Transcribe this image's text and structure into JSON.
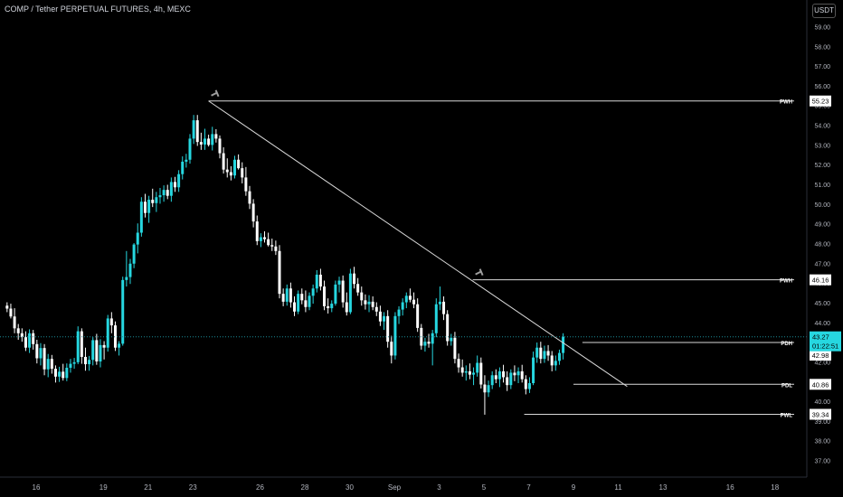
{
  "header": {
    "title": "COMP / Tether PERPETUAL FUTURES, 4h, MEXC",
    "currency_label": "USDT"
  },
  "chart_data": {
    "type": "candlestick",
    "colors": {
      "up": "#26d7e0",
      "down": "#ffffff",
      "level_line": "#d9d9d9",
      "current_price_line": "#1b8b98",
      "badge_bg": "#ffffff",
      "badge_text": "#000000",
      "current_badge_bg": "#26d7e0",
      "background": "#000000"
    },
    "y_axis": {
      "range": [
        36.2,
        59.8
      ],
      "ticks": [
        "59.00",
        "58.00",
        "57.00",
        "56.00",
        "55.00",
        "54.00",
        "53.00",
        "52.00",
        "51.00",
        "50.00",
        "49.00",
        "48.00",
        "47.00",
        "46.00",
        "45.00",
        "44.00",
        "43.00",
        "42.00",
        "41.00",
        "40.00",
        "39.00",
        "38.00",
        "37.00"
      ]
    },
    "x_axis": {
      "ticks": [
        {
          "label": "16",
          "day": 16
        },
        {
          "label": "19",
          "day": 19
        },
        {
          "label": "21",
          "day": 21
        },
        {
          "label": "23",
          "day": 23
        },
        {
          "label": "26",
          "day": 26
        },
        {
          "label": "28",
          "day": 28
        },
        {
          "label": "30",
          "day": 30
        },
        {
          "label": "Sep",
          "day": 32
        },
        {
          "label": "3",
          "day": 34
        },
        {
          "label": "5",
          "day": 36
        },
        {
          "label": "7",
          "day": 38
        },
        {
          "label": "9",
          "day": 40
        },
        {
          "label": "11",
          "day": 42
        },
        {
          "label": "13",
          "day": 44
        },
        {
          "label": "16",
          "day": 47
        },
        {
          "label": "18",
          "day": 49
        }
      ]
    },
    "levels": [
      {
        "label": "PWH",
        "value": 55.23,
        "value_text": "55.23",
        "start_day": 23.7
      },
      {
        "label": "PWH",
        "value": 46.16,
        "value_text": "46.16",
        "start_day": 35.5
      },
      {
        "label": "PDH",
        "value": 42.98,
        "value_text": "42.98",
        "start_day": 40.4
      },
      {
        "label": "PDL",
        "value": 40.86,
        "value_text": "40.86",
        "start_day": 40.0
      },
      {
        "label": "PWL",
        "value": 39.34,
        "value_text": "39.34",
        "start_day": 37.8
      }
    ],
    "trendline": {
      "start": [
        23.7,
        55.23
      ],
      "end": [
        42.4,
        40.75
      ]
    },
    "current_price": {
      "value": 43.27,
      "value_text": "43.27",
      "countdown": "01:22:51"
    },
    "ohlc_start_day": 14.7,
    "ohlc_step_day": 0.1667,
    "ohlc": [
      [
        44.85,
        45.02,
        44.52,
        44.7
      ],
      [
        44.7,
        44.95,
        44.2,
        44.3
      ],
      [
        44.3,
        44.72,
        43.45,
        43.7
      ],
      [
        43.7,
        43.92,
        43.12,
        43.45
      ],
      [
        43.45,
        43.7,
        43.02,
        43.25
      ],
      [
        43.25,
        43.55,
        42.55,
        42.72
      ],
      [
        42.72,
        43.65,
        42.45,
        43.45
      ],
      [
        43.45,
        43.62,
        42.62,
        42.9
      ],
      [
        42.9,
        43.12,
        41.92,
        42.18
      ],
      [
        42.18,
        42.95,
        41.82,
        42.7
      ],
      [
        42.7,
        42.9,
        41.32,
        41.62
      ],
      [
        41.62,
        42.4,
        41.22,
        42.15
      ],
      [
        42.15,
        42.35,
        41.4,
        41.65
      ],
      [
        41.65,
        41.82,
        40.95,
        41.25
      ],
      [
        41.25,
        41.75,
        40.98,
        41.5
      ],
      [
        41.5,
        41.9,
        41.05,
        41.18
      ],
      [
        41.18,
        41.92,
        41.02,
        41.7
      ],
      [
        41.7,
        42.15,
        41.45,
        41.9
      ],
      [
        41.9,
        42.2,
        41.65,
        41.98
      ],
      [
        41.98,
        43.8,
        41.88,
        43.55
      ],
      [
        43.55,
        43.7,
        41.9,
        42.25
      ],
      [
        42.25,
        42.72,
        41.55,
        41.88
      ],
      [
        41.88,
        42.3,
        41.55,
        42.1
      ],
      [
        42.1,
        43.25,
        41.82,
        43.1
      ],
      [
        43.1,
        43.42,
        41.85,
        42.02
      ],
      [
        42.02,
        43.15,
        41.72,
        42.85
      ],
      [
        42.85,
        43.05,
        42.12,
        42.72
      ],
      [
        42.72,
        44.38,
        42.52,
        44.2
      ],
      [
        44.2,
        44.52,
        43.45,
        43.85
      ],
      [
        43.85,
        44.05,
        42.55,
        42.72
      ],
      [
        42.72,
        43.05,
        42.32,
        42.92
      ],
      [
        42.92,
        46.32,
        42.82,
        46.15
      ],
      [
        46.15,
        47.62,
        45.82,
        46.3
      ],
      [
        46.3,
        47.22,
        45.95,
        46.98
      ],
      [
        46.98,
        48.02,
        46.75,
        47.95
      ],
      [
        47.95,
        49.02,
        47.5,
        48.55
      ],
      [
        48.55,
        50.35,
        48.35,
        50.12
      ],
      [
        50.12,
        50.52,
        49.32,
        49.55
      ],
      [
        49.55,
        50.42,
        49.05,
        50.22
      ],
      [
        50.22,
        50.78,
        49.85,
        50.05
      ],
      [
        50.05,
        50.62,
        49.6,
        50.35
      ],
      [
        50.35,
        50.82,
        50.02,
        50.45
      ],
      [
        50.45,
        50.95,
        50.12,
        50.72
      ],
      [
        50.72,
        50.98,
        50.25,
        50.42
      ],
      [
        50.42,
        51.35,
        50.12,
        51.12
      ],
      [
        51.12,
        51.38,
        50.62,
        50.85
      ],
      [
        50.85,
        51.72,
        50.62,
        51.52
      ],
      [
        51.52,
        52.42,
        51.25,
        52.15
      ],
      [
        52.15,
        52.55,
        51.85,
        52.25
      ],
      [
        52.25,
        53.55,
        52.05,
        53.32
      ],
      [
        53.32,
        54.52,
        53.05,
        54.25
      ],
      [
        54.25,
        54.52,
        52.95,
        53.15
      ],
      [
        53.15,
        53.62,
        52.75,
        53.02
      ],
      [
        53.02,
        53.82,
        52.75,
        53.32
      ],
      [
        53.32,
        53.52,
        52.92,
        53.0
      ],
      [
        53.0,
        53.92,
        52.72,
        53.55
      ],
      [
        53.55,
        53.8,
        53.12,
        53.32
      ],
      [
        53.32,
        53.48,
        52.32,
        52.58
      ],
      [
        52.58,
        52.88,
        51.55,
        51.75
      ],
      [
        51.75,
        52.32,
        51.35,
        51.62
      ],
      [
        51.62,
        51.92,
        51.2,
        51.45
      ],
      [
        51.45,
        52.45,
        51.3,
        52.25
      ],
      [
        52.25,
        52.52,
        51.75,
        51.82
      ],
      [
        51.82,
        52.12,
        51.05,
        51.35
      ],
      [
        51.35,
        51.88,
        50.42,
        50.65
      ],
      [
        50.65,
        50.92,
        49.75,
        50.02
      ],
      [
        50.02,
        50.25,
        48.82,
        49.12
      ],
      [
        49.12,
        49.42,
        47.92,
        48.12
      ],
      [
        48.12,
        48.52,
        47.82,
        48.32
      ],
      [
        48.32,
        48.62,
        48.05,
        48.22
      ],
      [
        48.22,
        48.55,
        47.85,
        47.92
      ],
      [
        47.92,
        48.25,
        47.62,
        47.85
      ],
      [
        47.85,
        48.15,
        47.42,
        47.62
      ],
      [
        47.62,
        47.92,
        45.22,
        45.45
      ],
      [
        45.45,
        45.72,
        44.82,
        45.05
      ],
      [
        45.05,
        45.92,
        44.85,
        45.72
      ],
      [
        45.72,
        46.02,
        44.75,
        45.02
      ],
      [
        45.02,
        45.32,
        44.32,
        44.55
      ],
      [
        44.55,
        45.62,
        44.42,
        45.45
      ],
      [
        45.45,
        45.72,
        44.92,
        45.12
      ],
      [
        45.12,
        45.62,
        44.52,
        44.78
      ],
      [
        44.78,
        45.52,
        44.62,
        45.35
      ],
      [
        45.35,
        45.92,
        44.95,
        45.72
      ],
      [
        45.72,
        46.65,
        45.52,
        46.42
      ],
      [
        46.42,
        46.72,
        45.62,
        45.82
      ],
      [
        45.82,
        46.12,
        44.62,
        44.82
      ],
      [
        44.82,
        45.22,
        44.45,
        44.72
      ],
      [
        44.72,
        45.12,
        44.52,
        44.95
      ],
      [
        44.95,
        46.12,
        44.85,
        45.92
      ],
      [
        45.92,
        46.32,
        45.52,
        46.12
      ],
      [
        46.12,
        46.38,
        44.75,
        45.02
      ],
      [
        45.02,
        45.52,
        44.35,
        44.52
      ],
      [
        44.52,
        46.72,
        44.42,
        46.48
      ],
      [
        46.48,
        46.82,
        45.72,
        45.95
      ],
      [
        45.95,
        46.25,
        45.35,
        45.52
      ],
      [
        45.52,
        45.82,
        44.85,
        45.12
      ],
      [
        45.12,
        45.42,
        44.65,
        44.92
      ],
      [
        44.92,
        45.38,
        44.52,
        45.05
      ],
      [
        45.05,
        45.32,
        44.62,
        44.78
      ],
      [
        44.78,
        45.02,
        44.32,
        44.55
      ],
      [
        44.55,
        44.85,
        43.82,
        44.05
      ],
      [
        44.05,
        44.52,
        43.62,
        44.32
      ],
      [
        44.32,
        44.62,
        42.72,
        43.02
      ],
      [
        43.02,
        43.32,
        41.92,
        42.32
      ],
      [
        42.32,
        44.52,
        42.12,
        44.32
      ],
      [
        44.32,
        44.82,
        43.92,
        44.65
      ],
      [
        44.65,
        45.22,
        44.35,
        45.02
      ],
      [
        45.02,
        45.52,
        44.72,
        45.35
      ],
      [
        45.35,
        45.72,
        45.02,
        45.15
      ],
      [
        45.15,
        45.52,
        44.72,
        44.92
      ],
      [
        44.92,
        45.22,
        43.52,
        43.72
      ],
      [
        43.72,
        43.92,
        42.62,
        42.82
      ],
      [
        42.82,
        43.22,
        42.52,
        43.02
      ],
      [
        43.02,
        43.42,
        42.72,
        42.92
      ],
      [
        42.92,
        43.62,
        41.82,
        43.45
      ],
      [
        43.45,
        45.22,
        43.25,
        44.92
      ],
      [
        44.92,
        45.82,
        44.62,
        45.05
      ],
      [
        45.05,
        45.32,
        44.12,
        44.42
      ],
      [
        44.42,
        44.62,
        42.82,
        43.05
      ],
      [
        43.05,
        43.42,
        42.82,
        43.22
      ],
      [
        43.22,
        43.52,
        41.92,
        42.15
      ],
      [
        42.15,
        42.42,
        41.45,
        41.72
      ],
      [
        41.72,
        42.12,
        41.25,
        41.45
      ],
      [
        41.45,
        41.82,
        41.05,
        41.52
      ],
      [
        41.52,
        41.92,
        41.12,
        41.35
      ],
      [
        41.35,
        41.72,
        40.82,
        41.45
      ],
      [
        41.45,
        42.32,
        41.25,
        41.95
      ],
      [
        41.95,
        42.22,
        40.65,
        40.85
      ],
      [
        40.85,
        41.32,
        39.32,
        40.45
      ],
      [
        40.45,
        41.05,
        40.22,
        40.82
      ],
      [
        40.82,
        41.52,
        40.62,
        41.32
      ],
      [
        41.32,
        41.62,
        40.92,
        41.12
      ],
      [
        41.12,
        41.72,
        40.72,
        41.52
      ],
      [
        41.52,
        41.85,
        40.95,
        41.22
      ],
      [
        41.22,
        41.52,
        40.52,
        40.82
      ],
      [
        40.82,
        41.62,
        40.62,
        41.45
      ],
      [
        41.45,
        41.82,
        41.02,
        41.32
      ],
      [
        41.32,
        41.72,
        40.92,
        41.52
      ],
      [
        41.52,
        41.85,
        40.95,
        41.12
      ],
      [
        41.12,
        41.32,
        40.35,
        40.62
      ],
      [
        40.62,
        41.22,
        40.42,
        40.92
      ],
      [
        40.92,
        42.52,
        40.82,
        42.22
      ],
      [
        42.22,
        42.98,
        41.95,
        42.72
      ],
      [
        42.72,
        43.02,
        41.92,
        42.15
      ],
      [
        42.15,
        42.82,
        41.95,
        42.55
      ],
      [
        42.55,
        42.85,
        42.05,
        42.32
      ],
      [
        42.32,
        42.55,
        41.52,
        41.82
      ],
      [
        41.82,
        42.32,
        41.55,
        42.05
      ],
      [
        42.05,
        42.62,
        41.85,
        42.45
      ],
      [
        42.45,
        43.45,
        42.12,
        43.27
      ]
    ]
  }
}
